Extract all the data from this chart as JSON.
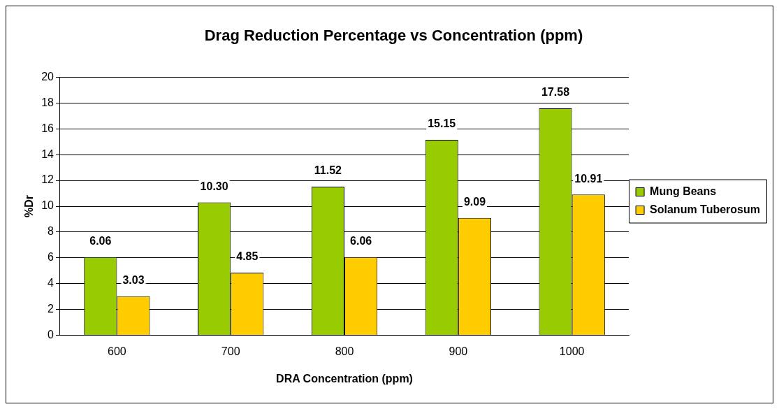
{
  "chart_data": {
    "type": "bar",
    "title": "Drag Reduction Percentage vs Concentration (ppm)",
    "xlabel": "DRA Concentration (ppm)",
    "ylabel": "%Dr",
    "categories": [
      "600",
      "700",
      "800",
      "900",
      "1000"
    ],
    "series": [
      {
        "name": "Mung Beans",
        "color": "#99cc00",
        "values": [
          6.06,
          10.3,
          11.52,
          15.15,
          17.58
        ],
        "value_labels": [
          "6.06",
          "10.30",
          "11.52",
          "15.15",
          "17.58"
        ]
      },
      {
        "name": "Solanum Tuberosum",
        "color": "#ffcc00",
        "values": [
          3.03,
          4.85,
          6.06,
          9.09,
          10.91
        ],
        "value_labels": [
          "3.03",
          "4.85",
          "6.06",
          "9.09",
          "10.91"
        ]
      }
    ],
    "ylim": [
      0,
      20
    ],
    "yticks": [
      0,
      2,
      4,
      6,
      8,
      10,
      12,
      14,
      16,
      18,
      20
    ],
    "grid": "y",
    "legend": "right"
  }
}
